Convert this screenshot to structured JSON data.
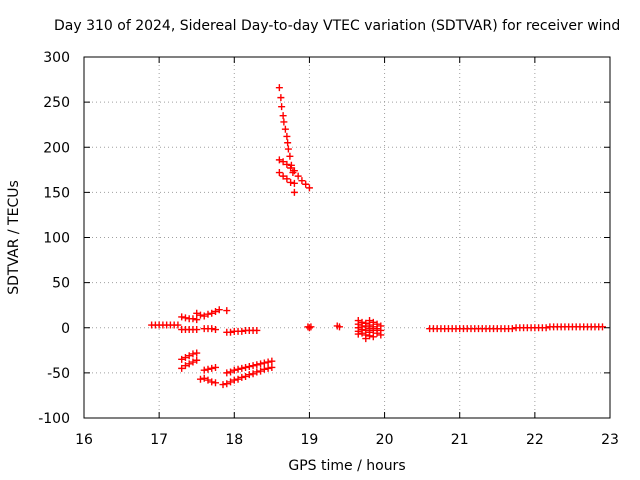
{
  "chart_data": {
    "type": "scatter",
    "title": "Day 310 of 2024, Sidereal Day-to-day VTEC variation (SDTVAR) for receiver wind",
    "xlabel": "GPS time / hours",
    "ylabel": "SDTVAR / TECUs",
    "xlim": [
      16,
      23
    ],
    "ylim": [
      -100,
      300
    ],
    "xticks": [
      "16",
      "17",
      "18",
      "19",
      "20",
      "21",
      "22",
      "23"
    ],
    "yticks": [
      "-100",
      "-50",
      "0",
      "50",
      "100",
      "150",
      "200",
      "250",
      "300"
    ],
    "grid": true,
    "marker": "+",
    "color": "#ff0000",
    "series": [
      {
        "name": "SDTVAR",
        "points": [
          [
            16.9,
            3
          ],
          [
            16.95,
            3
          ],
          [
            17.0,
            3
          ],
          [
            17.05,
            3
          ],
          [
            17.1,
            3
          ],
          [
            17.15,
            3
          ],
          [
            17.2,
            3
          ],
          [
            17.25,
            3
          ],
          [
            17.3,
            12
          ],
          [
            17.35,
            11
          ],
          [
            17.4,
            10
          ],
          [
            17.45,
            10
          ],
          [
            17.5,
            9
          ],
          [
            17.3,
            -2
          ],
          [
            17.35,
            -2
          ],
          [
            17.4,
            -2
          ],
          [
            17.45,
            -2
          ],
          [
            17.5,
            -2
          ],
          [
            17.6,
            13
          ],
          [
            17.65,
            15
          ],
          [
            17.7,
            16
          ],
          [
            17.75,
            18
          ],
          [
            17.8,
            20
          ],
          [
            17.9,
            19
          ],
          [
            17.5,
            16
          ],
          [
            17.55,
            14
          ],
          [
            17.6,
            -1
          ],
          [
            17.65,
            -1
          ],
          [
            17.7,
            -1
          ],
          [
            17.75,
            -2
          ],
          [
            17.3,
            -35
          ],
          [
            17.35,
            -33
          ],
          [
            17.4,
            -31
          ],
          [
            17.45,
            -29
          ],
          [
            17.5,
            -28
          ],
          [
            17.3,
            -45
          ],
          [
            17.35,
            -42
          ],
          [
            17.4,
            -40
          ],
          [
            17.45,
            -38
          ],
          [
            17.5,
            -36
          ],
          [
            17.6,
            -47
          ],
          [
            17.65,
            -46
          ],
          [
            17.7,
            -45
          ],
          [
            17.75,
            -44
          ],
          [
            17.55,
            -57
          ],
          [
            17.6,
            -56
          ],
          [
            17.65,
            -58
          ],
          [
            17.7,
            -60
          ],
          [
            17.75,
            -61
          ],
          [
            17.9,
            -5
          ],
          [
            17.95,
            -5
          ],
          [
            18.0,
            -4
          ],
          [
            18.05,
            -4
          ],
          [
            18.1,
            -4
          ],
          [
            18.15,
            -3
          ],
          [
            18.2,
            -3
          ],
          [
            18.25,
            -3
          ],
          [
            18.3,
            -3
          ],
          [
            17.9,
            -50
          ],
          [
            17.95,
            -49
          ],
          [
            18.0,
            -47
          ],
          [
            18.05,
            -46
          ],
          [
            18.1,
            -45
          ],
          [
            18.15,
            -44
          ],
          [
            18.2,
            -43
          ],
          [
            18.25,
            -42
          ],
          [
            18.3,
            -41
          ],
          [
            18.35,
            -40
          ],
          [
            18.4,
            -39
          ],
          [
            18.45,
            -38
          ],
          [
            18.5,
            -37
          ],
          [
            17.85,
            -63
          ],
          [
            17.9,
            -62
          ],
          [
            17.95,
            -60
          ],
          [
            18.0,
            -58
          ],
          [
            18.05,
            -57
          ],
          [
            18.1,
            -55
          ],
          [
            18.15,
            -54
          ],
          [
            18.2,
            -52
          ],
          [
            18.25,
            -51
          ],
          [
            18.3,
            -49
          ],
          [
            18.35,
            -48
          ],
          [
            18.4,
            -46
          ],
          [
            18.45,
            -45
          ],
          [
            18.5,
            -44
          ],
          [
            18.6,
            266
          ],
          [
            18.62,
            255
          ],
          [
            18.63,
            245
          ],
          [
            18.65,
            235
          ],
          [
            18.66,
            228
          ],
          [
            18.68,
            220
          ],
          [
            18.7,
            212
          ],
          [
            18.71,
            205
          ],
          [
            18.72,
            198
          ],
          [
            18.74,
            190
          ],
          [
            18.76,
            180
          ],
          [
            18.78,
            172
          ],
          [
            18.8,
            160
          ],
          [
            18.8,
            150
          ],
          [
            18.6,
            186
          ],
          [
            18.65,
            184
          ],
          [
            18.7,
            181
          ],
          [
            18.75,
            177
          ],
          [
            18.8,
            174
          ],
          [
            18.85,
            168
          ],
          [
            18.9,
            163
          ],
          [
            18.95,
            159
          ],
          [
            19.0,
            155
          ],
          [
            18.6,
            172
          ],
          [
            18.65,
            168
          ],
          [
            18.7,
            165
          ],
          [
            18.75,
            161
          ],
          [
            18.98,
            1
          ],
          [
            19.0,
            0
          ],
          [
            19.02,
            1
          ],
          [
            19.37,
            2
          ],
          [
            19.4,
            1
          ],
          [
            19.65,
            8
          ],
          [
            19.65,
            4
          ],
          [
            19.65,
            0
          ],
          [
            19.65,
            -4
          ],
          [
            19.65,
            -7
          ],
          [
            19.7,
            6
          ],
          [
            19.7,
            2
          ],
          [
            19.7,
            -2
          ],
          [
            19.7,
            -6
          ],
          [
            19.75,
            5
          ],
          [
            19.75,
            1
          ],
          [
            19.75,
            -3
          ],
          [
            19.75,
            -8
          ],
          [
            19.75,
            -12
          ],
          [
            19.8,
            8
          ],
          [
            19.8,
            3
          ],
          [
            19.8,
            -1
          ],
          [
            19.8,
            -5
          ],
          [
            19.8,
            -9
          ],
          [
            19.85,
            6
          ],
          [
            19.85,
            1
          ],
          [
            19.85,
            -3
          ],
          [
            19.85,
            -10
          ],
          [
            19.9,
            4
          ],
          [
            19.9,
            -1
          ],
          [
            19.9,
            -6
          ],
          [
            19.95,
            2
          ],
          [
            19.95,
            -3
          ],
          [
            19.95,
            -8
          ],
          [
            20.6,
            -1
          ],
          [
            20.65,
            -1
          ],
          [
            20.7,
            -1
          ],
          [
            20.75,
            -1
          ],
          [
            20.8,
            -1
          ],
          [
            20.85,
            -1
          ],
          [
            20.9,
            -1
          ],
          [
            20.95,
            -1
          ],
          [
            21.0,
            -1
          ],
          [
            21.05,
            -1
          ],
          [
            21.1,
            -1
          ],
          [
            21.15,
            -1
          ],
          [
            21.2,
            -1
          ],
          [
            21.25,
            -1
          ],
          [
            21.3,
            -1
          ],
          [
            21.35,
            -1
          ],
          [
            21.4,
            -1
          ],
          [
            21.45,
            -1
          ],
          [
            21.5,
            -1
          ],
          [
            21.55,
            -1
          ],
          [
            21.6,
            -1
          ],
          [
            21.65,
            -1
          ],
          [
            21.7,
            -1
          ],
          [
            21.75,
            0
          ],
          [
            21.8,
            0
          ],
          [
            21.85,
            0
          ],
          [
            21.9,
            0
          ],
          [
            21.95,
            0
          ],
          [
            22.0,
            0
          ],
          [
            22.05,
            0
          ],
          [
            22.1,
            0
          ],
          [
            22.15,
            0
          ],
          [
            22.2,
            1
          ],
          [
            22.25,
            1
          ],
          [
            22.3,
            1
          ],
          [
            22.35,
            1
          ],
          [
            22.4,
            1
          ],
          [
            22.45,
            1
          ],
          [
            22.5,
            1
          ],
          [
            22.55,
            1
          ],
          [
            22.6,
            1
          ],
          [
            22.65,
            1
          ],
          [
            22.7,
            1
          ],
          [
            22.75,
            1
          ],
          [
            22.8,
            1
          ],
          [
            22.85,
            1
          ],
          [
            22.9,
            1
          ]
        ]
      }
    ]
  }
}
